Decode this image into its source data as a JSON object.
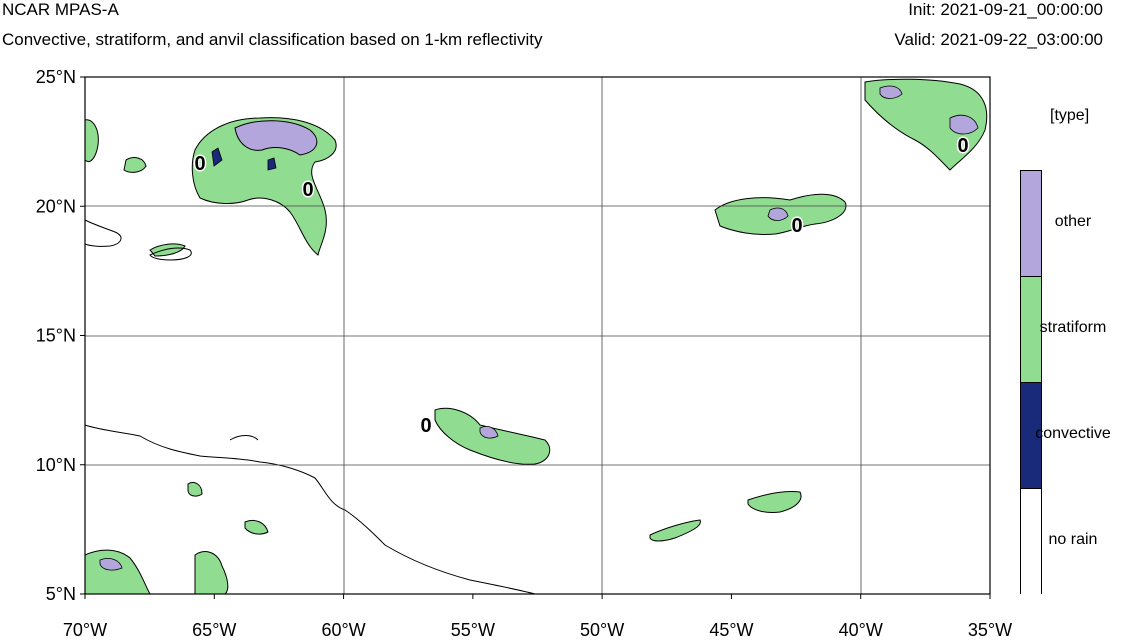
{
  "header": {
    "title": "NCAR MPAS-A",
    "subtitle": "Convective, stratiform, and anvil classification based on 1-km reflectivity",
    "init": "Init: 2021-09-21_00:00:00",
    "valid": "Valid: 2021-09-22_03:00:00"
  },
  "axes": {
    "lat_labels": [
      "25°N",
      "20°N",
      "15°N",
      "10°N",
      "5°N"
    ],
    "lat_values": [
      25,
      20,
      15,
      10,
      5
    ],
    "lon_labels": [
      "70°W",
      "65°W",
      "60°W",
      "55°W",
      "50°W",
      "45°W",
      "40°W",
      "35°W"
    ],
    "lon_values": [
      -70,
      -65,
      -60,
      -55,
      -50,
      -45,
      -40,
      -35
    ],
    "lat_range": [
      5,
      25
    ],
    "lon_range": [
      -70,
      -35
    ]
  },
  "contour_labels": [
    "0",
    "0",
    "0",
    "0",
    "0"
  ],
  "legend": {
    "title": "[type]",
    "items": [
      {
        "label": "other",
        "color": "#b3a6dc"
      },
      {
        "label": "stratiform",
        "color": "#90dc90"
      },
      {
        "label": "convective",
        "color": "#1a2a7a"
      },
      {
        "label": "no rain",
        "color": "#ffffff"
      }
    ]
  },
  "colors": {
    "other": "#b3a6dc",
    "stratiform": "#90dc90",
    "convective": "#1a2a7a",
    "coast": "#000000",
    "grid": "#444444"
  }
}
